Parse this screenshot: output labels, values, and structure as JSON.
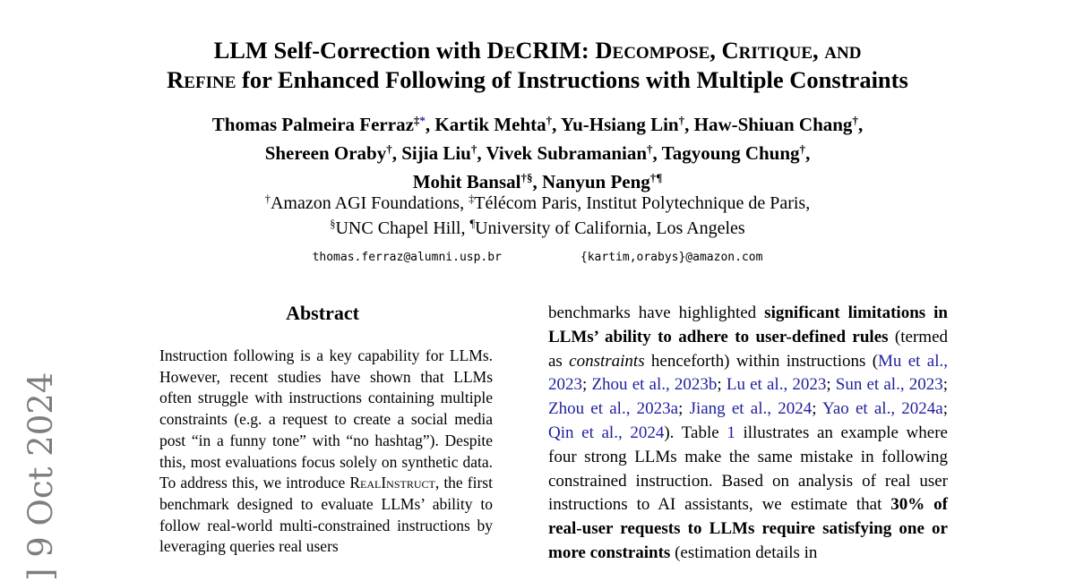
{
  "colors": {
    "citation_link": "#1f1f9e",
    "arxiv_stamp": "#7e7e7e",
    "text": "#000000",
    "background": "#ffffff"
  },
  "arxiv_stamp": {
    "text": "] 9 Oct 2024"
  },
  "title": {
    "line1": [
      {
        "t": "LLM Self-Correction with ",
        "s": "p"
      },
      {
        "t": "De",
        "s": "sc"
      },
      {
        "t": "CRIM: ",
        "s": "p"
      },
      {
        "t": "Decompose, Critique, and",
        "s": "sc"
      }
    ],
    "line2": [
      {
        "t": "Refine",
        "s": "sc"
      },
      {
        "t": " for Enhanced Following of Instructions with Multiple Constraints",
        "s": "p"
      }
    ]
  },
  "authors": {
    "line1": [
      {
        "t": "Thomas Palmeira Ferraz",
        "s": "p"
      },
      {
        "t": "‡",
        "s": "sup"
      },
      {
        "t": "*",
        "s": "supl",
        "n": "footnote-asterisk-link"
      },
      {
        "t": ", Kartik Mehta",
        "s": "p"
      },
      {
        "t": "†",
        "s": "sup"
      },
      {
        "t": ", Yu-Hsiang Lin",
        "s": "p"
      },
      {
        "t": "†",
        "s": "sup"
      },
      {
        "t": ", Haw-Shiuan Chang",
        "s": "p"
      },
      {
        "t": "†",
        "s": "sup"
      },
      {
        "t": ",",
        "s": "p"
      }
    ],
    "line2": [
      {
        "t": "Shereen Oraby",
        "s": "p"
      },
      {
        "t": "†",
        "s": "sup"
      },
      {
        "t": ", Sijia Liu",
        "s": "p"
      },
      {
        "t": "†",
        "s": "sup"
      },
      {
        "t": ", Vivek Subramanian",
        "s": "p"
      },
      {
        "t": "†",
        "s": "sup"
      },
      {
        "t": ", Tagyoung Chung",
        "s": "p"
      },
      {
        "t": "†",
        "s": "sup"
      },
      {
        "t": ",",
        "s": "p"
      }
    ],
    "line3": [
      {
        "t": "Mohit Bansal",
        "s": "p"
      },
      {
        "t": "†§",
        "s": "sup"
      },
      {
        "t": ", Nanyun Peng",
        "s": "p"
      },
      {
        "t": "†¶",
        "s": "sup"
      }
    ]
  },
  "affiliations": {
    "line1": [
      {
        "t": "†",
        "s": "sup"
      },
      {
        "t": "Amazon AGI Foundations, ",
        "s": "p"
      },
      {
        "t": "‡",
        "s": "sup"
      },
      {
        "t": "Télécom Paris, Institut Polytechnique de Paris,",
        "s": "p"
      }
    ],
    "line2": [
      {
        "t": "§",
        "s": "sup"
      },
      {
        "t": "UNC Chapel Hill, ",
        "s": "p"
      },
      {
        "t": "¶",
        "s": "sup"
      },
      {
        "t": "University of California, Los Angeles",
        "s": "p"
      }
    ]
  },
  "emails": {
    "left": "thomas.ferraz@alumni.usp.br",
    "right": "{kartim,orabys}@amazon.com"
  },
  "abstract": {
    "heading": "Abstract",
    "body": [
      {
        "t": "Instruction following is a key capability for LLMs. However, recent studies have shown that LLMs often struggle with instructions containing multiple constraints (e.g. a request to create a social media post “in a funny tone” with “no hashtag”). Despite this, most evaluations focus solely on synthetic data. To address this, we introduce ",
        "s": "p"
      },
      {
        "t": "RealInstruct",
        "s": "sc"
      },
      {
        "t": ", the first benchmark designed to evaluate LLMs’ ability to follow real-world multi-constrained instructions by leveraging queries real users",
        "s": "p"
      }
    ]
  },
  "introduction": {
    "body": [
      {
        "t": "benchmarks have highlighted ",
        "s": "p"
      },
      {
        "t": "significant limitations in LLMs’ ability to adhere to user-defined rules",
        "s": "b"
      },
      {
        "t": " (termed as ",
        "s": "p"
      },
      {
        "t": "constraints",
        "s": "i"
      },
      {
        "t": " henceforth) within instructions (",
        "s": "p"
      },
      {
        "t": "Mu et al., 2023",
        "s": "l"
      },
      {
        "t": "; ",
        "s": "p"
      },
      {
        "t": "Zhou et al., 2023b",
        "s": "l"
      },
      {
        "t": "; ",
        "s": "p"
      },
      {
        "t": "Lu et al., 2023",
        "s": "l"
      },
      {
        "t": "; ",
        "s": "p"
      },
      {
        "t": "Sun et al., 2023",
        "s": "l"
      },
      {
        "t": "; ",
        "s": "p"
      },
      {
        "t": "Zhou et al., 2023a",
        "s": "l"
      },
      {
        "t": "; ",
        "s": "p"
      },
      {
        "t": "Jiang et al., 2024",
        "s": "l"
      },
      {
        "t": "; ",
        "s": "p"
      },
      {
        "t": "Yao et al., 2024a",
        "s": "l"
      },
      {
        "t": "; ",
        "s": "p"
      },
      {
        "t": "Qin et al., 2024",
        "s": "l"
      },
      {
        "t": "). Table ",
        "s": "p"
      },
      {
        "t": "1",
        "s": "l",
        "n": "table-ref-link"
      },
      {
        "t": " illustrates an example where four strong LLMs make the same mistake in following constrained instruction. Based on analysis of real user instructions to AI assistants, we estimate that ",
        "s": "p"
      },
      {
        "t": "30% of real-user requests to LLMs require satisfying one or more constraints",
        "s": "b"
      },
      {
        "t": " (estimation details in",
        "s": "p"
      }
    ]
  }
}
